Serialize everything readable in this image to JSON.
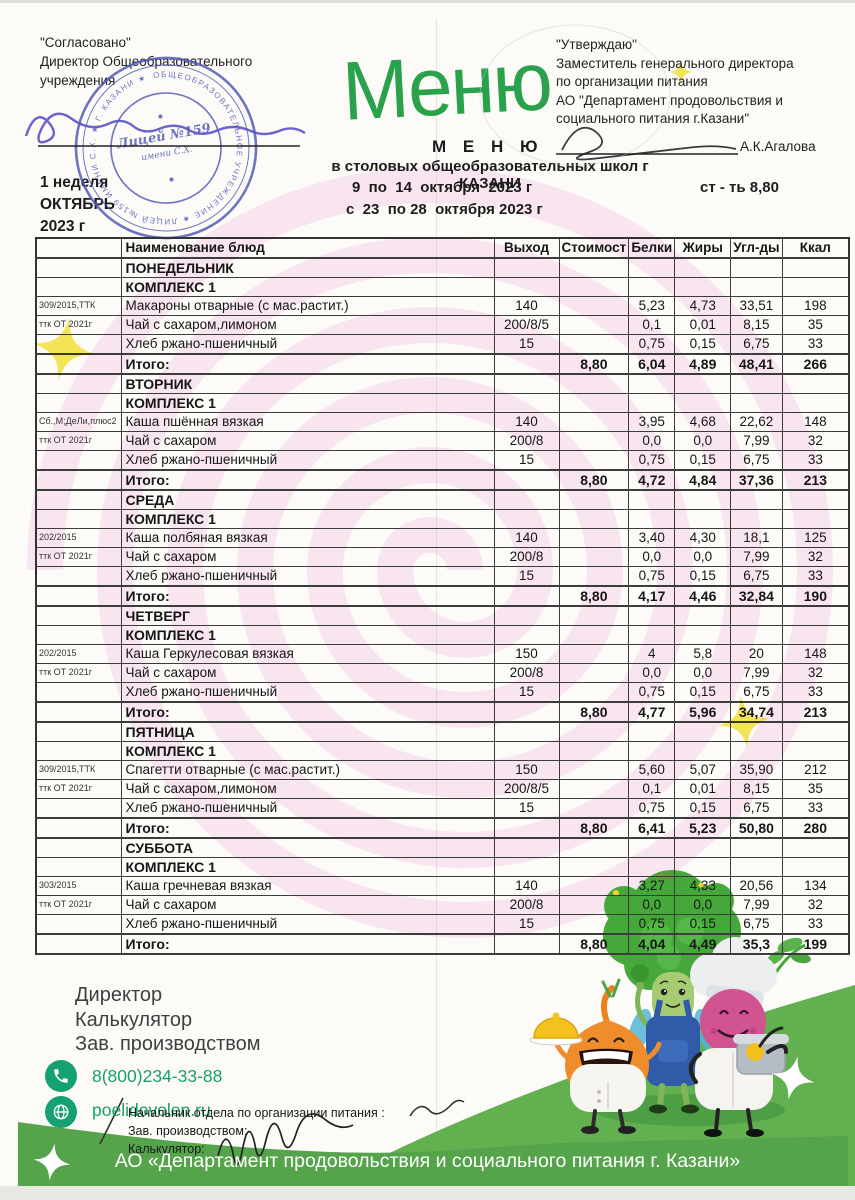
{
  "doc": {
    "approved_left": [
      "\"Согласовано\"",
      "Директор Общеобразовательного",
      "учреждения"
    ],
    "stamp": {
      "center_line1": "Лицей №159",
      "center_line2": "имени С.Х.",
      "ring_text": "ОБЩЕОБРАЗОВАТЕЛЬНОЕ УЧРЕЖДЕНИЕ ★ ЛИЦЕЙ №159 ИМЕНИ С.Х. ★ Г. КАЗАНИ ★"
    },
    "week": [
      "1 неделя",
      "ОКТЯБРЬ",
      "2023 г"
    ],
    "script_title": "Меню",
    "menu_heading": "М Е Н Ю",
    "subheading": "в столовых общеобразовательных школ г КАЗАНИ",
    "period1": "9  по  14  октября  2023 г",
    "cost_label": "ст - ть 8,80",
    "period2": "с  23  по 28  октября 2023 г",
    "approved_right": [
      "\"Утверждаю\"",
      "Заместитель генерального директора",
      "по организации питания",
      "АО \"Департамент продовольствия и",
      "социального питания г.Казани\""
    ],
    "right_signer": "А.К.Агалова"
  },
  "table": {
    "headers": [
      "",
      "Наименование блюд",
      "Выход",
      "Стоимост",
      "Белки",
      "Жиры",
      "Угл-ды",
      "Ккал"
    ],
    "sections": [
      {
        "day": "ПОНЕДЕЛЬНИК",
        "complex": "КОМПЛЕКС 1",
        "dishes": [
          {
            "code": "309/2015,ТТК",
            "name": "Макароны отварные (с мас.растит.)",
            "out": "140",
            "protein": "5,23",
            "fat": "4,73",
            "carbs": "33,51",
            "kcal": "198"
          },
          {
            "code": "ттк ОТ 2021г",
            "name": "Чай с сахаром,лимоном",
            "out": "200/8/5",
            "protein": "0,1",
            "fat": "0,01",
            "carbs": "8,15",
            "kcal": "35"
          },
          {
            "code": "",
            "name": "Хлеб ржано-пшеничный",
            "out": "15",
            "protein": "0,75",
            "fat": "0,15",
            "carbs": "6,75",
            "kcal": "33"
          }
        ],
        "total": {
          "label": "Итого:",
          "cost": "8,80",
          "protein": "6,04",
          "fat": "4,89",
          "carbs": "48,41",
          "kcal": "266"
        }
      },
      {
        "day": "ВТОРНИК",
        "complex": "КОМПЛЕКС 1",
        "dishes": [
          {
            "code": "Сб.,М;ДеЛи,плюс2",
            "name": "Каша пшённая вязкая",
            "out": "140",
            "protein": "3,95",
            "fat": "4,68",
            "carbs": "22,62",
            "kcal": "148"
          },
          {
            "code": "ттк ОТ 2021г",
            "name": "Чай с сахаром",
            "out": "200/8",
            "protein": "0,0",
            "fat": "0,0",
            "carbs": "7,99",
            "kcal": "32"
          },
          {
            "code": "",
            "name": "Хлеб ржано-пшеничный",
            "out": "15",
            "protein": "0,75",
            "fat": "0,15",
            "carbs": "6,75",
            "kcal": "33"
          }
        ],
        "total": {
          "label": "Итого:",
          "cost": "8,80",
          "protein": "4,72",
          "fat": "4,84",
          "carbs": "37,36",
          "kcal": "213"
        }
      },
      {
        "day": "СРЕДА",
        "complex": "КОМПЛЕКС 1",
        "dishes": [
          {
            "code": "202/2015",
            "name": "Каша  полбяная вязкая",
            "out": "140",
            "protein": "3,40",
            "fat": "4,30",
            "carbs": "18,1",
            "kcal": "125"
          },
          {
            "code": "ттк ОТ 2021г",
            "name": "Чай с сахаром",
            "out": "200/8",
            "protein": "0,0",
            "fat": "0,0",
            "carbs": "7,99",
            "kcal": "32"
          },
          {
            "code": "",
            "name": "Хлеб ржано-пшеничный",
            "out": "15",
            "protein": "0,75",
            "fat": "0,15",
            "carbs": "6,75",
            "kcal": "33"
          }
        ],
        "total": {
          "label": "Итого:",
          "cost": "8,80",
          "protein": "4,17",
          "fat": "4,46",
          "carbs": "32,84",
          "kcal": "190"
        }
      },
      {
        "day": "ЧЕТВЕРГ",
        "complex": "КОМПЛЕКС 1",
        "dishes": [
          {
            "code": "202/2015",
            "name": "Каша  Геркулесовая вязкая",
            "out": "150",
            "protein": "4",
            "fat": "5,8",
            "carbs": "20",
            "kcal": "148"
          },
          {
            "code": "ттк ОТ 2021г",
            "name": "Чай с сахаром",
            "out": "200/8",
            "protein": "0,0",
            "fat": "0,0",
            "carbs": "7,99",
            "kcal": "32"
          },
          {
            "code": "",
            "name": "Хлеб ржано-пшеничный",
            "out": "15",
            "protein": "0,75",
            "fat": "0,15",
            "carbs": "6,75",
            "kcal": "33"
          }
        ],
        "total": {
          "label": "Итого:",
          "cost": "8,80",
          "protein": "4,77",
          "fat": "5,96",
          "carbs": "34,74",
          "kcal": "213"
        }
      },
      {
        "day": "ПЯТНИЦА",
        "complex": "КОМПЛЕКС 1",
        "dishes": [
          {
            "code": "309/2015,ТТК",
            "name": "Спагетти отварные (с мас.растит.)",
            "out": "150",
            "protein": "5,60",
            "fat": "5,07",
            "carbs": "35,90",
            "kcal": "212"
          },
          {
            "code": "ттк ОТ 2021г",
            "name": "Чай с сахаром,лимоном",
            "out": "200/8/5",
            "protein": "0,1",
            "fat": "0,01",
            "carbs": "8,15",
            "kcal": "35"
          },
          {
            "code": "",
            "name": "Хлеб ржано-пшеничный",
            "out": "15",
            "protein": "0,75",
            "fat": "0,15",
            "carbs": "6,75",
            "kcal": "33"
          }
        ],
        "total": {
          "label": "Итого:",
          "cost": "8,80",
          "protein": "6,41",
          "fat": "5,23",
          "carbs": "50,80",
          "kcal": "280"
        }
      },
      {
        "day": "СУББОТА",
        "complex": "КОМПЛЕКС 1",
        "dishes": [
          {
            "code": "303/2015",
            "name": "Каша гречневая вязкая",
            "out": "140",
            "protein": "3,27",
            "fat": "4,33",
            "carbs": "20,56",
            "kcal": "134"
          },
          {
            "code": "ттк ОТ 2021г",
            "name": "Чай с сахаром",
            "out": "200/8",
            "protein": "0,0",
            "fat": "0,0",
            "carbs": "7,99",
            "kcal": "32"
          },
          {
            "code": "",
            "name": "Хлеб ржано-пшеничный",
            "out": "15",
            "protein": "0,75",
            "fat": "0,15",
            "carbs": "6,75",
            "kcal": "33"
          }
        ],
        "total": {
          "label": "Итого:",
          "cost": "8,80",
          "protein": "4,04",
          "fat": "4,49",
          "carbs": "35,3",
          "kcal": "199"
        }
      }
    ]
  },
  "footer": {
    "roles": [
      "Директор",
      "Калькулятор",
      "Зав. производством"
    ],
    "phone": "8(800)234-33-88",
    "website": "poelidovolen.ru",
    "sign_lines": [
      "Начальник отдела по организации питания :",
      "Зав. производством:",
      "Калькулятор:"
    ],
    "band": "АО «Департамент продовольствия и социального питания г. Казани»"
  },
  "colors": {
    "brand_green": "#2aa24c",
    "contact_green": "#16a169",
    "hill_green": "#62b050",
    "band_green": "#55a44b",
    "watermark_pink": "#f6d7eb",
    "stamp_blue": "#4e57b6",
    "highlight_yellow": "#f4e33c"
  }
}
